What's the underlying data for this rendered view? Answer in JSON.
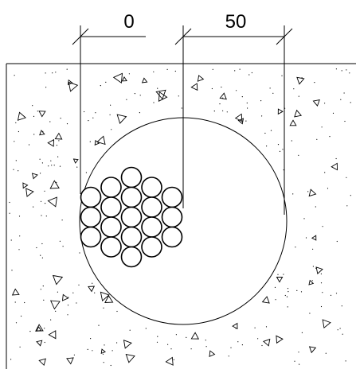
{
  "dimensions": {
    "left_value": "0",
    "right_value": "50"
  },
  "colors": {
    "line": "#000000",
    "background": "#ffffff"
  },
  "conductor_bundle": {
    "columns": [
      3,
      4,
      5,
      4,
      3
    ]
  },
  "icons": [
    "triangle-aggregate-icon",
    "dot-aggregate-icon"
  ]
}
